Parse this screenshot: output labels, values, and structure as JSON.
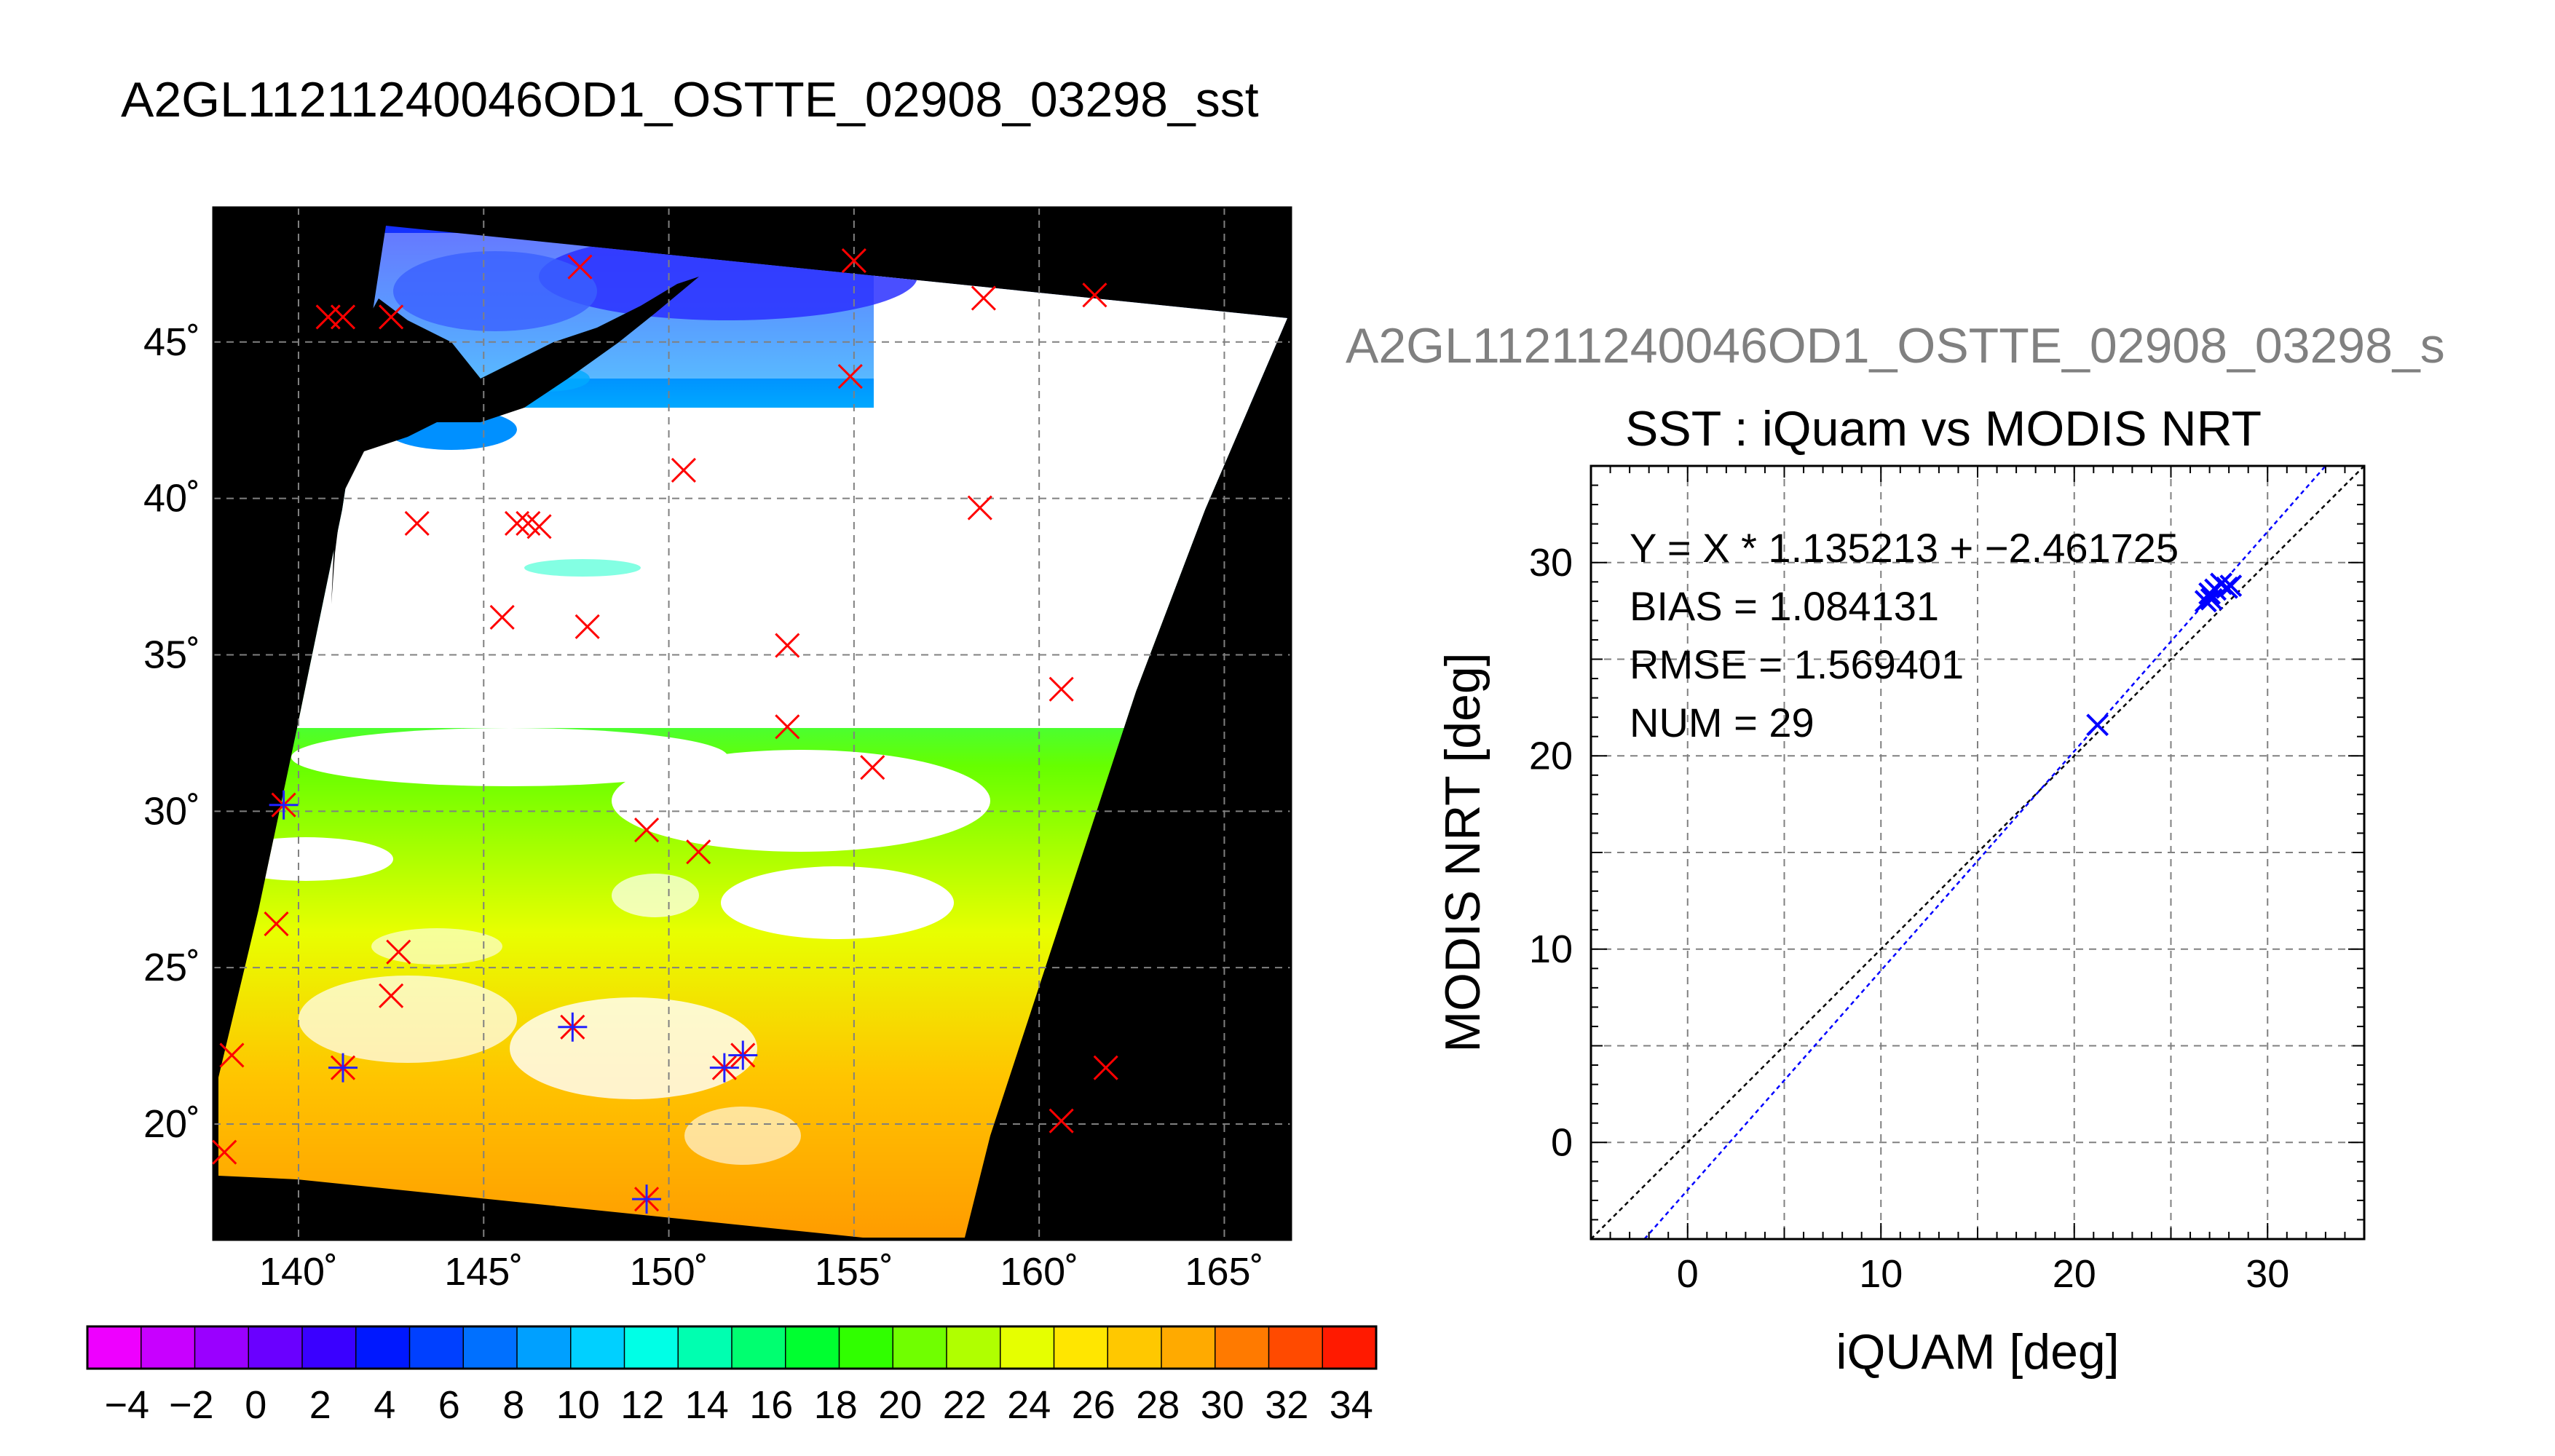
{
  "page": {
    "title": "A2GL11211240046OD1_OSTTE_02908_03298_sst"
  },
  "map": {
    "lon_ticks": [
      "140˚",
      "145˚",
      "150˚",
      "155˚",
      "160˚",
      "165˚"
    ],
    "lat_ticks": [
      "45˚",
      "40˚",
      "35˚",
      "30˚",
      "25˚",
      "20˚"
    ],
    "lon_range": [
      137.7,
      166.8
    ],
    "lat_range": [
      16.3,
      49.3
    ],
    "grid": true,
    "background_color": "#000000",
    "cloud_color": "#ffffff",
    "markers": [
      {
        "lon": 140.8,
        "lat": 45.8,
        "type": "x"
      },
      {
        "lon": 141.2,
        "lat": 45.8,
        "type": "x"
      },
      {
        "lon": 142.5,
        "lat": 45.8,
        "type": "x"
      },
      {
        "lon": 147.6,
        "lat": 47.4,
        "type": "x"
      },
      {
        "lon": 155.0,
        "lat": 47.6,
        "type": "x"
      },
      {
        "lon": 158.5,
        "lat": 46.4,
        "type": "x"
      },
      {
        "lon": 161.5,
        "lat": 46.5,
        "type": "x"
      },
      {
        "lon": 154.9,
        "lat": 43.9,
        "type": "x"
      },
      {
        "lon": 150.4,
        "lat": 40.9,
        "type": "x"
      },
      {
        "lon": 158.4,
        "lat": 39.7,
        "type": "x"
      },
      {
        "lon": 143.2,
        "lat": 39.2,
        "type": "x"
      },
      {
        "lon": 145.9,
        "lat": 39.2,
        "type": "x"
      },
      {
        "lon": 146.2,
        "lat": 39.2,
        "type": "x"
      },
      {
        "lon": 146.5,
        "lat": 39.1,
        "type": "x"
      },
      {
        "lon": 145.5,
        "lat": 36.2,
        "type": "x"
      },
      {
        "lon": 147.8,
        "lat": 35.9,
        "type": "x"
      },
      {
        "lon": 153.2,
        "lat": 35.3,
        "type": "x"
      },
      {
        "lon": 160.6,
        "lat": 33.9,
        "type": "x"
      },
      {
        "lon": 153.2,
        "lat": 32.7,
        "type": "x"
      },
      {
        "lon": 155.5,
        "lat": 31.4,
        "type": "x"
      },
      {
        "lon": 149.4,
        "lat": 29.4,
        "type": "x"
      },
      {
        "lon": 150.8,
        "lat": 28.7,
        "type": "x"
      },
      {
        "lon": 139.6,
        "lat": 30.2,
        "type": "star"
      },
      {
        "lon": 139.4,
        "lat": 26.4,
        "type": "x"
      },
      {
        "lon": 142.7,
        "lat": 25.5,
        "type": "x"
      },
      {
        "lon": 142.5,
        "lat": 24.1,
        "type": "x"
      },
      {
        "lon": 147.4,
        "lat": 23.1,
        "type": "star"
      },
      {
        "lon": 141.2,
        "lat": 21.8,
        "type": "star"
      },
      {
        "lon": 151.5,
        "lat": 21.8,
        "type": "star"
      },
      {
        "lon": 152.0,
        "lat": 22.2,
        "type": "star"
      },
      {
        "lon": 138.2,
        "lat": 22.2,
        "type": "x"
      },
      {
        "lon": 138.0,
        "lat": 19.1,
        "type": "x"
      },
      {
        "lon": 149.4,
        "lat": 17.6,
        "type": "star"
      },
      {
        "lon": 161.8,
        "lat": 21.8,
        "type": "x"
      },
      {
        "lon": 160.6,
        "lat": 20.1,
        "type": "x"
      }
    ],
    "marker_color": "#ff0000",
    "match_color": "#2222ff"
  },
  "colorbar": {
    "labels": [
      "−4",
      "−2",
      "0",
      "2",
      "4",
      "6",
      "8",
      "10",
      "12",
      "14",
      "16",
      "18",
      "20",
      "22",
      "24",
      "26",
      "28",
      "30",
      "32",
      "34"
    ],
    "colors": [
      "#ee00ff",
      "#c800ff",
      "#9a00ff",
      "#6a00ff",
      "#3a00ff",
      "#0018ff",
      "#0040ff",
      "#0070ff",
      "#00a0ff",
      "#00d0ff",
      "#00ffe6",
      "#00ffb0",
      "#00ff70",
      "#00ff30",
      "#30ff00",
      "#70ff00",
      "#b0ff00",
      "#e6ff00",
      "#ffe600",
      "#ffc800",
      "#ffaa00",
      "#ff7a00",
      "#ff4a00",
      "#ff1a00"
    ]
  },
  "scatter": {
    "title": "A2GL11211240046OD1_OSTTE_02908_03298_s",
    "subtitle": "SST : iQuam vs MODIS NRT",
    "stats": [
      "Y = X * 1.135213 + −2.461725",
      "BIAS = 1.084131",
      "RMSE = 1.569401",
      "NUM = 29"
    ]
  },
  "chart_data": {
    "type": "scatter",
    "title": "SST : iQuam vs MODIS NRT",
    "xlabel": "iQUAM [deg]",
    "ylabel": "MODIS NRT [deg]",
    "xlim": [
      -5,
      35
    ],
    "ylim": [
      -5,
      35
    ],
    "x_ticks": [
      "0",
      "10",
      "20",
      "30"
    ],
    "y_ticks": [
      "0",
      "10",
      "20",
      "30"
    ],
    "grid": true,
    "series": [
      {
        "points": [
          [
            21.2,
            21.6
          ],
          [
            26.8,
            28.0
          ],
          [
            27.0,
            28.4
          ],
          [
            27.3,
            28.6
          ],
          [
            27.6,
            28.9
          ],
          [
            27.9,
            28.7
          ],
          [
            28.1,
            28.8
          ],
          [
            27.1,
            28.1
          ]
        ],
        "color": "#0000ff"
      }
    ],
    "fit_line": {
      "slope": 1.135213,
      "intercept": -2.461725,
      "color": "#0000ff"
    },
    "identity_line": {
      "slope": 1,
      "intercept": 0,
      "color": "#000000"
    }
  }
}
